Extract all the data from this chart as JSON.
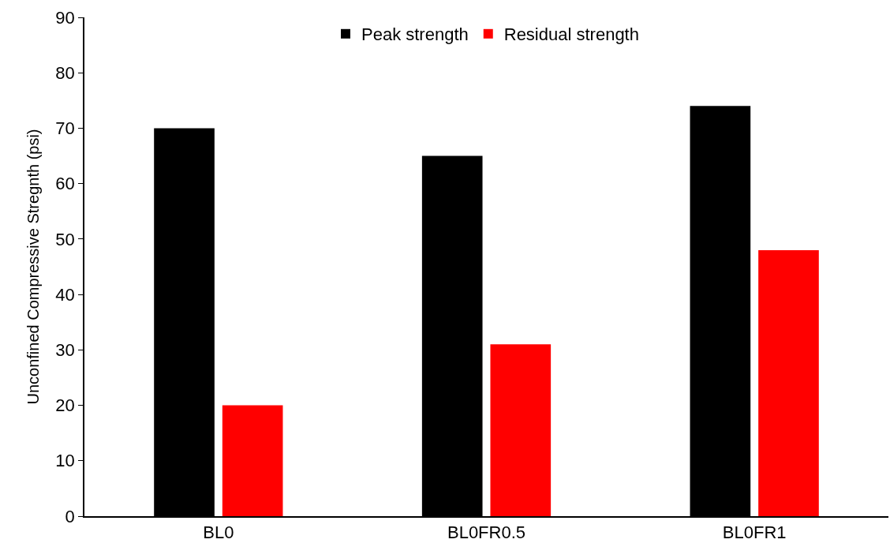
{
  "chart_data": {
    "type": "bar",
    "ylabel": "Unconfined Compressive Stregnth (psi)",
    "categories": [
      "BL0",
      "BL0FR0.5",
      "BL0FR1"
    ],
    "series": [
      {
        "name": "Peak strength",
        "color": "#000000",
        "values": [
          70,
          65,
          74
        ]
      },
      {
        "name": "Residual strength",
        "color": "#ff0000",
        "values": [
          20,
          31,
          48
        ]
      }
    ],
    "ylim": [
      0,
      90
    ],
    "yticks": [
      0,
      10,
      20,
      30,
      40,
      50,
      60,
      70,
      80,
      90
    ],
    "grid": false,
    "legend": "top"
  }
}
